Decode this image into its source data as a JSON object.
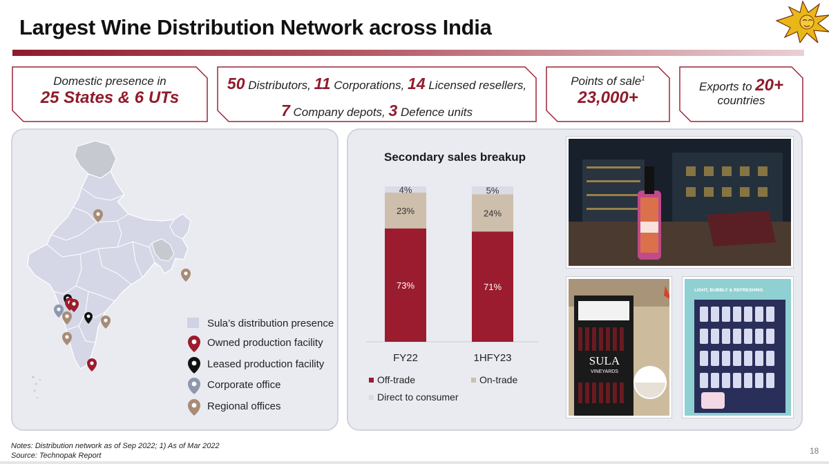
{
  "title": "Largest Wine Distribution Network across India",
  "callouts": {
    "domestic": {
      "line1": "Domestic presence in",
      "line2": "25 States & 6 UTs"
    },
    "network": {
      "n1": "50",
      "t1": " Distributors, ",
      "n2": "11",
      "t2": " Corporations, ",
      "n3": "14",
      "t3": " Licensed resellers,",
      "n4": "7",
      "t4": " Company depots, ",
      "n5": "3",
      "t5": " Defence units"
    },
    "pos": {
      "label": "Points of sale",
      "sup": "1",
      "value": "23,000+"
    },
    "exports": {
      "pre": "Exports to ",
      "value": "20+",
      "post": "countries"
    }
  },
  "map_legend": {
    "presence": "Sula’s distribution presence",
    "owned": "Owned production facility",
    "leased": "Leased production facility",
    "corporate": "Corporate office",
    "regional": "Regional offices"
  },
  "colors": {
    "off_trade": "#9b1c2e",
    "on_trade": "#cdbfac",
    "direct": "#d9dbe6",
    "accent": "#8f1b2c"
  },
  "chart_data": {
    "type": "bar",
    "stacked": true,
    "title": "Secondary sales breakup",
    "categories": [
      "FY22",
      "1HFY23"
    ],
    "series": [
      {
        "name": "Off-trade",
        "values": [
          73,
          71
        ],
        "labels": [
          "73%",
          "71%"
        ]
      },
      {
        "name": "On-trade",
        "values": [
          23,
          24
        ],
        "labels": [
          "23%",
          "24%"
        ]
      },
      {
        "name": "Direct to consumer",
        "values": [
          4,
          5
        ],
        "labels": [
          "4%",
          "5%"
        ]
      }
    ],
    "ylim": [
      0,
      100
    ],
    "legend": "bottom"
  },
  "photos": {
    "sign_text": "SULA",
    "sign_sub": "VINEYARDS",
    "fridge_text": "LIGHT, BUBBLY & REFRESHING"
  },
  "notes": {
    "line1": "Notes: Distribution network as of Sep 2022; 1) As of Mar 2022",
    "line2": "Source: Technopak Report"
  },
  "page_number": "18"
}
